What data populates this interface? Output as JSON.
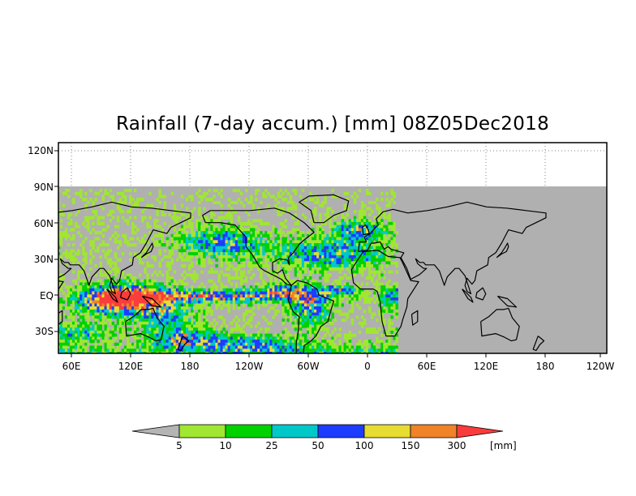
{
  "title": "Rainfall (7-day accum.) [mm] 08Z05Dec2018",
  "map": {
    "lon_labels": [
      "60E",
      "120E",
      "180",
      "120W",
      "60W",
      "0",
      "60E",
      "120E",
      "180",
      "120W"
    ],
    "lat_labels": [
      "120N",
      "90N",
      "60N",
      "30N",
      "EQ",
      "30S"
    ],
    "land_color": "#b0b0b0"
  },
  "colorbar": {
    "thresholds": [
      "5",
      "10",
      "25",
      "50",
      "100",
      "150",
      "300"
    ],
    "unit_label": "[mm]",
    "colors": [
      "#b4b4b4",
      "#a0e632",
      "#00d200",
      "#00c8c8",
      "#1e3cff",
      "#e6dc32",
      "#f08228",
      "#fa3c3c"
    ]
  }
}
